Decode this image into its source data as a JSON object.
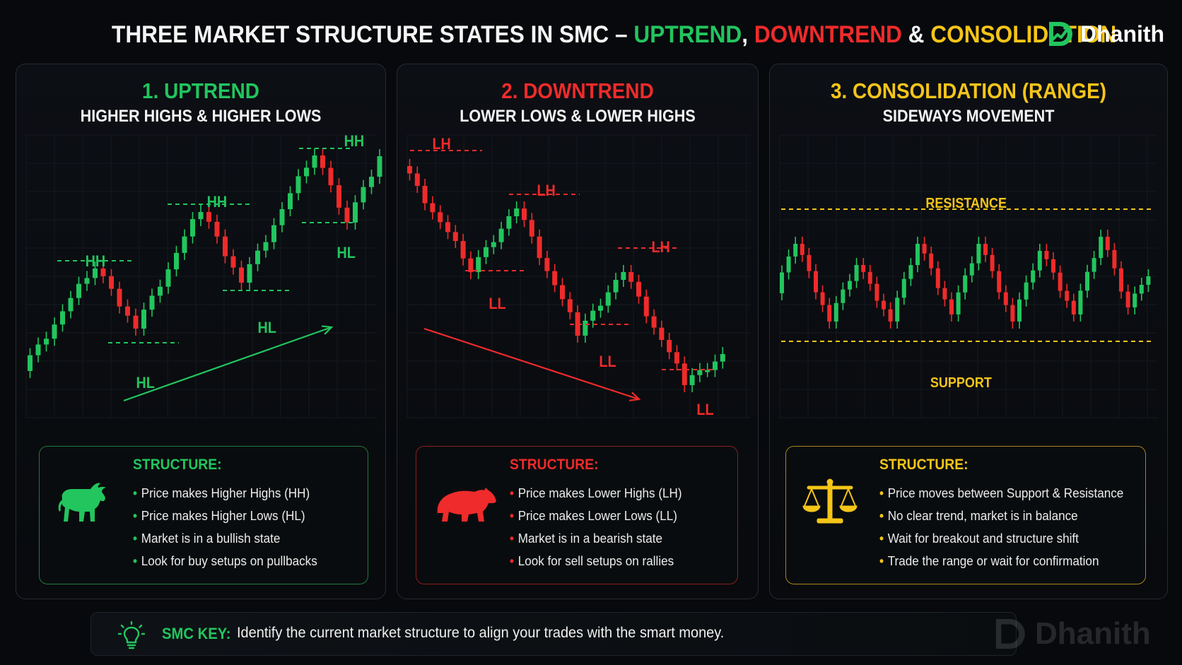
{
  "header": {
    "title_part1": "THREE MARKET STRUCTURE STATES IN SMC – ",
    "title_uptrend": "UPTREND",
    "title_comma": ", ",
    "title_downtrend": "DOWNTREND",
    "title_amp": " & ",
    "title_consolidation": "CONSOLIDATION",
    "brand": "Dhanith"
  },
  "colors": {
    "bullish": "#22c55e",
    "bearish": "#ef2b2b",
    "range": "#f5c518",
    "background": "#07090c"
  },
  "panels": [
    {
      "title": "1. UPTREND",
      "subtitle": "HIGHER HIGHS & HIGHER LOWS",
      "labels": [
        "HH",
        "HH",
        "HH",
        "HL",
        "HL",
        "HL"
      ],
      "icon": "bull-icon",
      "structure_title": "STRUCTURE:",
      "points": [
        "Price makes Higher Highs (HH)",
        "Price makes Higher Lows (HL)",
        "Market is in a bullish state",
        "Look for buy setups on pullbacks"
      ]
    },
    {
      "title": "2. DOWNTREND",
      "subtitle": "LOWER LOWS & LOWER HIGHS",
      "labels": [
        "LH",
        "LH",
        "LH",
        "LL",
        "LL",
        "LL"
      ],
      "icon": "bear-icon",
      "structure_title": "STRUCTURE:",
      "points": [
        "Price makes Lower Highs (LH)",
        "Price makes Lower Lows (LL)",
        "Market is in a bearish state",
        "Look for sell setups on rallies"
      ]
    },
    {
      "title": "3. CONSOLIDATION (RANGE)",
      "subtitle": "SIDEWAYS MOVEMENT",
      "labels": [
        "RESISTANCE",
        "SUPPORT"
      ],
      "icon": "scales-icon",
      "structure_title": "STRUCTURE:",
      "points": [
        "Price moves between Support & Resistance",
        "No clear trend, market is in balance",
        "Wait for breakout and structure shift",
        "Trade the range or wait for confirmation"
      ]
    }
  ],
  "key": {
    "label": "SMC KEY:",
    "text": "Identify the current market structure to align your trades with the smart money.",
    "icon": "lightbulb-icon"
  },
  "watermark": "Dhanith"
}
